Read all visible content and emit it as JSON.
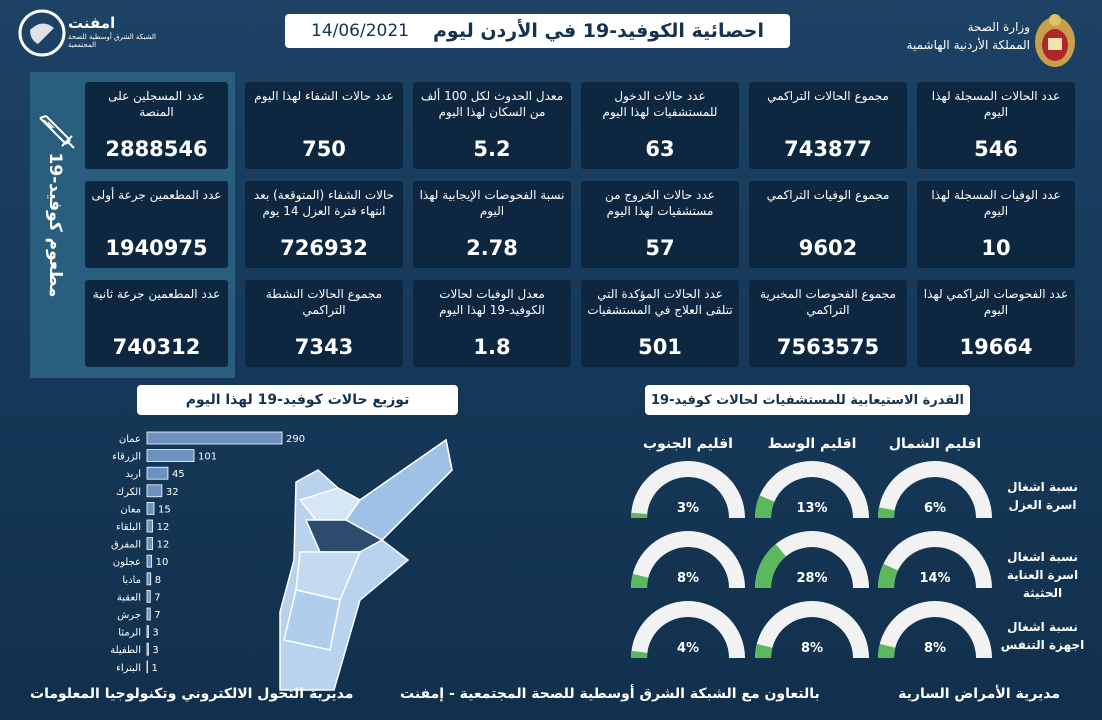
{
  "header": {
    "org": "امفنت",
    "org_subtitle": "الشبكة الشرق أوسطية للصحة المجتمعية",
    "title": "احصائية الكوفيد-19 في الأردن ليوم",
    "date": "14/06/2021",
    "ministry": "وزارة الصحة",
    "kingdom": "المملكة الأردنية الهاشمية"
  },
  "vaccine": {
    "title": "مطعوم كوفيد-19",
    "cards": [
      {
        "label": "عدد المسجلين على المنصة",
        "value": 2888546
      },
      {
        "label": "عدد المطعمين جرعة أولى",
        "value": 1940975
      },
      {
        "label": "عدد المطعمين جرعة ثانية",
        "value": 740312
      }
    ]
  },
  "cards": [
    {
      "label": "عدد الحالات المسجلة لهذا اليوم",
      "value": 546
    },
    {
      "label": "مجموع الحالات التراكمي",
      "value": 743877
    },
    {
      "label": "عدد حالات الدخول للمستشفيات لهذا اليوم",
      "value": 63
    },
    {
      "label": "معدل الحدوث لكل 100 ألف من السكان لهذا اليوم",
      "value": 5.2
    },
    {
      "label": "عدد حالات الشفاء لهذا اليوم",
      "value": 750
    },
    {
      "label": "عدد الوفيات المسجلة لهذا اليوم",
      "value": 10
    },
    {
      "label": "مجموع الوفيات التراكمي",
      "value": 9602
    },
    {
      "label": "عدد حالات الخروج من مستشفيات لهذا اليوم",
      "value": 57
    },
    {
      "label": "نسبة الفحوصات الإيجابية لهذا اليوم",
      "value": 2.78
    },
    {
      "label": "حالات الشفاء (المتوقعة) بعد انتهاء فترة العزل 14 يوم",
      "value": 726932
    },
    {
      "label": "عدد الفحوصات التراكمي لهذا اليوم",
      "value": 19664
    },
    {
      "label": "مجموع الفحوصات المخبرية التراكمي",
      "value": 7563575
    },
    {
      "label": "عدد الحالات المؤكدة التي تتلقى العلاج في المستشفيات",
      "value": 501
    },
    {
      "label": "معدل الوفيات لحالات الكوفيد-19 لهذا اليوم",
      "value": 1.8
    },
    {
      "label": "مجموع الحالات النشطة التراكمي",
      "value": 7343
    }
  ],
  "chart_data": [
    {
      "type": "bar",
      "title": "توزيع حالات كوفيد-19 لهذا اليوم",
      "categories": [
        "عمان",
        "الزرقاء",
        "اربد",
        "الكرك",
        "معان",
        "البلقاء",
        "المفرق",
        "عجلون",
        "مادبا",
        "العقبة",
        "جرش",
        "الرمثا",
        "الطفيلة",
        "البتراء"
      ],
      "values": [
        290,
        101,
        45,
        32,
        15,
        12,
        12,
        10,
        8,
        7,
        7,
        3,
        3,
        1
      ],
      "color": "#6d92c0"
    },
    {
      "type": "gauge",
      "title": "القدرة الاستيعابية للمستشفيات لحالات كوفيد-19",
      "categories": [
        "نسبة اشغال اسرة العزل",
        "نسبة اشغال اسرة العناية الحثيثة",
        "نسبة اشغال اجهزة التنفس"
      ],
      "track_color": "#f2f2f2",
      "series": [
        {
          "name": "اقليم الشمال",
          "color": "#5cb85c",
          "values": [
            6,
            14,
            8
          ],
          "value_labels": [
            "6%",
            "14%",
            "8%"
          ]
        },
        {
          "name": "اقليم الوسط",
          "color": "#5cb85c",
          "values": [
            13,
            28,
            8
          ],
          "value_labels": [
            "13%",
            "28%",
            "8%"
          ]
        },
        {
          "name": "اقليم الجنوب",
          "color": "#5cb85c",
          "values": [
            3,
            8,
            4
          ],
          "value_labels": [
            "3%",
            "8%",
            "4%"
          ]
        }
      ]
    }
  ],
  "footer": {
    "left": "مديرية التحول الالكتروني وتكنولوجيا المعلومات",
    "center": "بالتعاون مع الشبكة الشرق أوسطية للصحة المجتمعية - إمفنت",
    "right": "مديرية الأمراض السارية"
  }
}
